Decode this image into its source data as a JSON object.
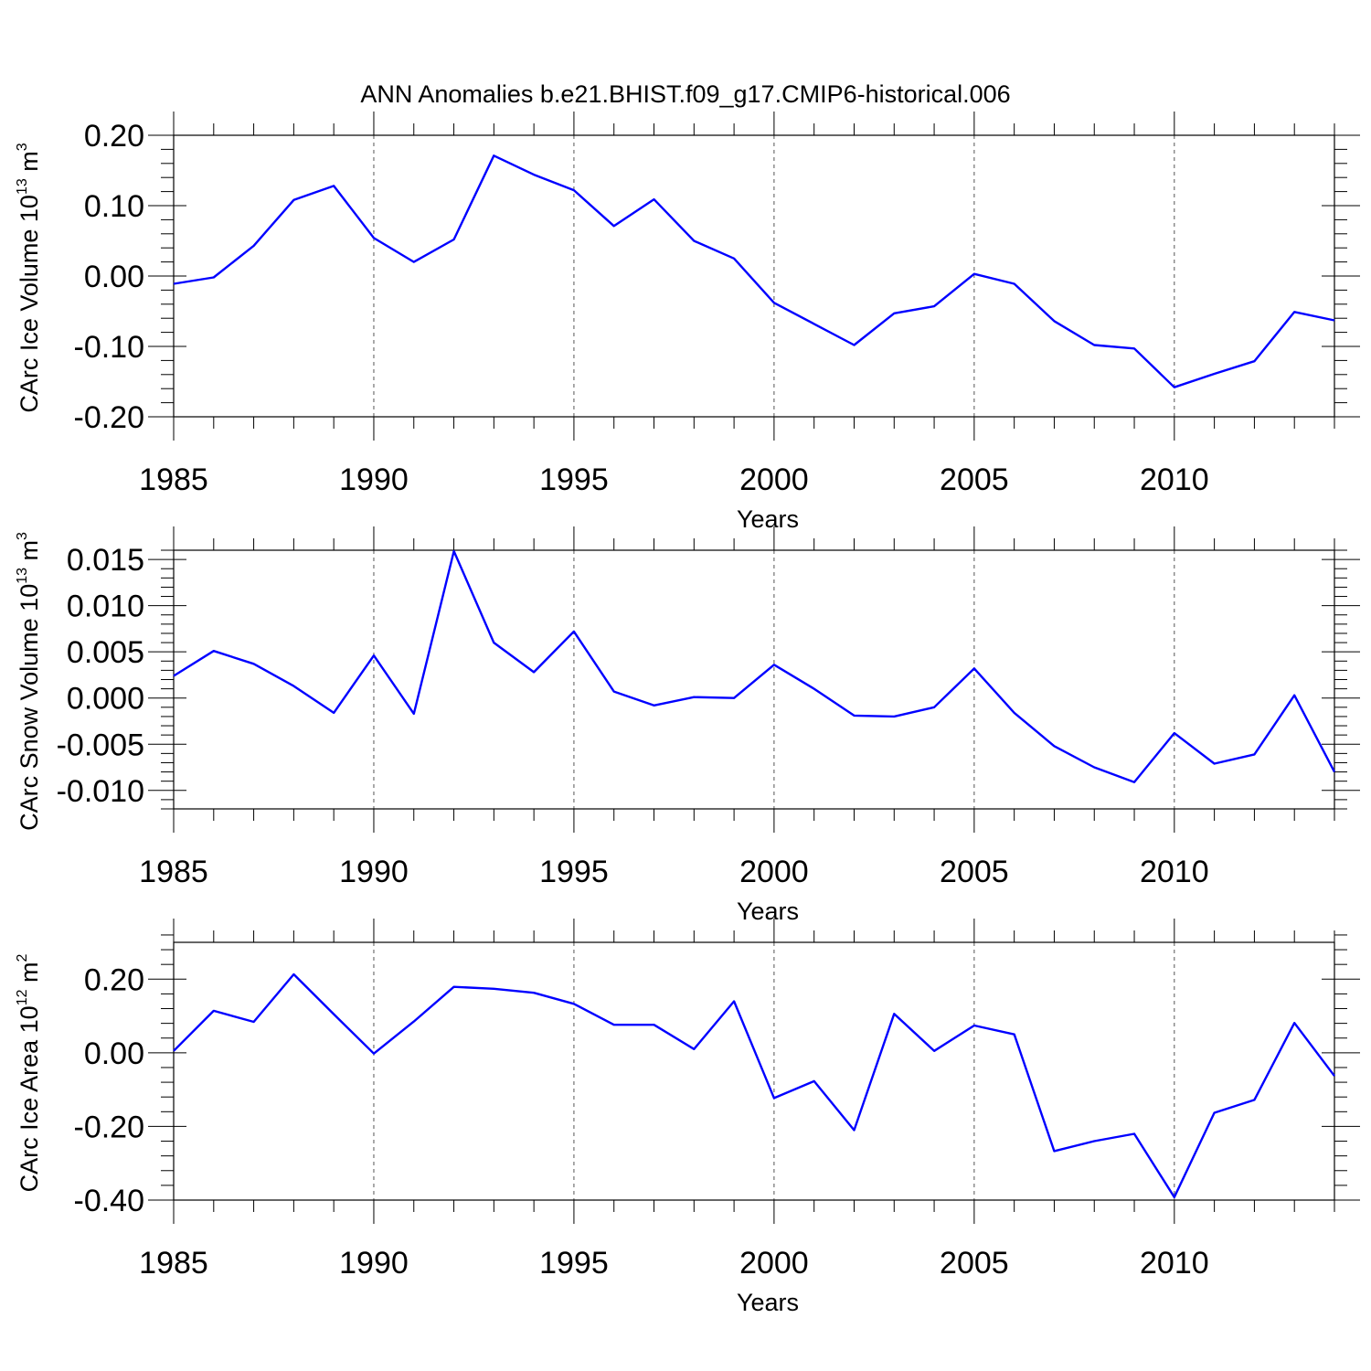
{
  "figure_title": "ANN Anomalies b.e21.BHIST.f09_g17.CMIP6-historical.006",
  "colors": {
    "line": "#0000ff",
    "axes": "#000000",
    "grid": "#555555"
  },
  "chart_data": [
    {
      "type": "line",
      "ylabel": "CArc Ice Volume 10",
      "ylabel_exp": "13",
      "ylabel_unit": " m",
      "ylabel_unit_exp": "3",
      "xlabel": "Years",
      "xlim": [
        1985,
        2014
      ],
      "ylim": [
        -0.2,
        0.2
      ],
      "xticks": [
        1985,
        1990,
        1995,
        2000,
        2005,
        2010
      ],
      "xtick_labels": [
        "1985",
        "1990",
        "1995",
        "2000",
        "2005",
        "2010"
      ],
      "yticks": [
        -0.2,
        -0.1,
        0.0,
        0.1,
        0.2
      ],
      "ytick_labels": [
        "-0.20",
        "-0.10",
        "0.00",
        "0.10",
        "0.20"
      ],
      "yminor_step": 0.02,
      "grid": "vertical dashed at major x ticks",
      "x": [
        1985,
        1986,
        1987,
        1988,
        1989,
        1990,
        1991,
        1992,
        1993,
        1994,
        1995,
        1996,
        1997,
        1998,
        1999,
        2000,
        2001,
        2002,
        2003,
        2004,
        2005,
        2006,
        2007,
        2008,
        2009,
        2010,
        2011,
        2012,
        2013,
        2014
      ],
      "series": [
        {
          "values": [
            -0.011,
            -0.002,
            0.043,
            0.108,
            0.128,
            0.054,
            0.02,
            0.052,
            0.171,
            0.144,
            0.122,
            0.071,
            0.109,
            0.05,
            0.025,
            -0.038,
            -0.068,
            -0.098,
            -0.053,
            -0.043,
            0.003,
            -0.011,
            -0.064,
            -0.098,
            -0.103,
            -0.158,
            -0.139,
            -0.121,
            -0.051,
            -0.063
          ]
        }
      ]
    },
    {
      "type": "line",
      "ylabel": "CArc Snow Volume 10",
      "ylabel_exp": "13",
      "ylabel_unit": " m",
      "ylabel_unit_exp": "3",
      "xlabel": "Years",
      "xlim": [
        1985,
        2014
      ],
      "ylim": [
        -0.012,
        0.016
      ],
      "xticks": [
        1985,
        1990,
        1995,
        2000,
        2005,
        2010
      ],
      "xtick_labels": [
        "1985",
        "1990",
        "1995",
        "2000",
        "2005",
        "2010"
      ],
      "yticks": [
        -0.01,
        -0.005,
        0.0,
        0.005,
        0.01,
        0.015
      ],
      "ytick_labels": [
        "-0.010",
        "-0.005",
        "0.000",
        "0.005",
        "0.010",
        "0.015"
      ],
      "yminor_step": 0.001,
      "grid": "vertical dashed at major x ticks",
      "x": [
        1985,
        1986,
        1987,
        1988,
        1989,
        1990,
        1991,
        1992,
        1993,
        1994,
        1995,
        1996,
        1997,
        1998,
        1999,
        2000,
        2001,
        2002,
        2003,
        2004,
        2005,
        2006,
        2007,
        2008,
        2009,
        2010,
        2011,
        2012,
        2013,
        2014
      ],
      "series": [
        {
          "values": [
            0.0024,
            0.0051,
            0.0037,
            0.0013,
            -0.0016,
            0.0046,
            -0.0017,
            0.0159,
            0.006,
            0.0028,
            0.0072,
            0.0007,
            -0.0008,
            0.0001,
            0.0,
            0.0036,
            0.001,
            -0.0019,
            -0.002,
            -0.001,
            0.0032,
            -0.0016,
            -0.0052,
            -0.0075,
            -0.0091,
            -0.0038,
            -0.0071,
            -0.0061,
            0.0003,
            -0.008
          ]
        }
      ]
    },
    {
      "type": "line",
      "ylabel": "CArc Ice Area 10",
      "ylabel_exp": "12",
      "ylabel_unit": " m",
      "ylabel_unit_exp": "2",
      "xlabel": "Years",
      "xlim": [
        1985,
        2014
      ],
      "ylim": [
        -0.4,
        0.3
      ],
      "xticks": [
        1985,
        1990,
        1995,
        2000,
        2005,
        2010
      ],
      "xtick_labels": [
        "1985",
        "1990",
        "1995",
        "2000",
        "2005",
        "2010"
      ],
      "yticks": [
        -0.4,
        -0.2,
        0.0,
        0.2
      ],
      "ytick_labels": [
        "-0.40",
        "-0.20",
        "0.00",
        "0.20"
      ],
      "yminor_step": 0.04,
      "grid": "vertical dashed at major x ticks",
      "x": [
        1985,
        1986,
        1987,
        1988,
        1989,
        1990,
        1991,
        1992,
        1993,
        1994,
        1995,
        1996,
        1997,
        1998,
        1999,
        2000,
        2001,
        2002,
        2003,
        2004,
        2005,
        2006,
        2007,
        2008,
        2009,
        2010,
        2011,
        2012,
        2013,
        2014
      ],
      "series": [
        {
          "values": [
            0.005,
            0.114,
            0.084,
            0.213,
            0.105,
            -0.002,
            0.085,
            0.179,
            0.174,
            0.163,
            0.133,
            0.076,
            0.076,
            0.01,
            0.14,
            -0.123,
            -0.077,
            -0.21,
            0.106,
            0.005,
            0.074,
            0.05,
            -0.267,
            -0.24,
            -0.22,
            -0.392,
            -0.163,
            -0.128,
            0.081,
            -0.063
          ]
        }
      ]
    }
  ]
}
